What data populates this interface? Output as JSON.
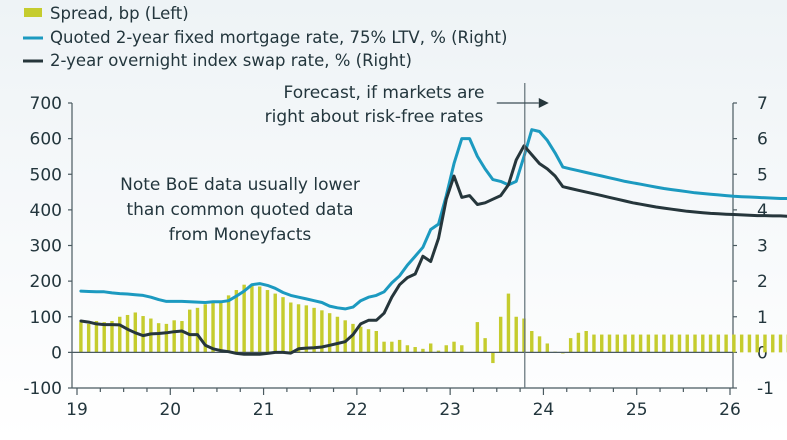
{
  "chart_data": {
    "type": "bar+line",
    "title": "",
    "legend": {
      "placement": "top-left",
      "entries": [
        {
          "label": "Spread, bp (Left)",
          "kind": "bar",
          "color": "#c5cc2e"
        },
        {
          "label": "Quoted 2-year fixed mortgage rate, 75% LTV, % (Right)",
          "kind": "line",
          "color": "#1c9ac0"
        },
        {
          "label": "2-year overnight index swap rate, % (Right)",
          "kind": "line",
          "color": "#26363b"
        }
      ]
    },
    "x_axis": {
      "start": 2019,
      "end": 2026,
      "tick_labels": [
        "19",
        "20",
        "21",
        "22",
        "23",
        "24",
        "25",
        "26"
      ],
      "minor_ticks_per_year": 4
    },
    "left_axis": {
      "label": "bp",
      "ylim": [
        -100,
        700
      ],
      "tick_labels": [
        "700",
        "600",
        "500",
        "400",
        "300",
        "200",
        "100",
        "0",
        "-100"
      ]
    },
    "right_axis": {
      "label": "%",
      "ylim": [
        -1,
        7
      ],
      "tick_labels": [
        "7",
        "6",
        "5",
        "4",
        "3",
        "2",
        "1",
        "0",
        "-1"
      ]
    },
    "forecast_start": 2023.8,
    "annotations": {
      "forecast": [
        "Forecast, if markets are",
        "right about risk-free rates"
      ],
      "note": [
        "Note BoE data usually lower",
        "than common quoted data",
        "from Moneyfacts"
      ]
    },
    "x_monthly_start": 2019.0,
    "series": [
      {
        "name": "Spread, bp (Left)",
        "axis": "left",
        "type": "bar",
        "values": [
          85,
          80,
          88,
          85,
          88,
          100,
          105,
          112,
          102,
          95,
          82,
          80,
          90,
          88,
          120,
          125,
          135,
          140,
          145,
          160,
          175,
          190,
          190,
          185,
          175,
          165,
          155,
          140,
          135,
          132,
          125,
          118,
          110,
          100,
          90,
          80,
          72,
          65,
          60,
          30,
          30,
          35,
          20,
          15,
          10,
          25,
          5,
          20,
          30,
          20,
          0,
          85,
          40,
          -30,
          100,
          165,
          100,
          95,
          60,
          45,
          25,
          2,
          -3,
          40,
          55,
          60,
          50,
          50,
          50,
          50,
          50,
          50,
          50,
          50,
          50,
          50,
          50,
          50,
          50,
          50,
          50,
          50,
          50,
          50,
          50,
          50,
          50,
          50,
          50,
          50,
          50,
          50,
          50,
          50,
          50,
          50
        ]
      },
      {
        "name": "Quoted 2-year fixed mortgage rate, 75% LTV, % (Right)",
        "axis": "right",
        "type": "line",
        "values": [
          1.72,
          1.71,
          1.7,
          1.7,
          1.67,
          1.65,
          1.64,
          1.62,
          1.6,
          1.55,
          1.48,
          1.43,
          1.43,
          1.43,
          1.42,
          1.41,
          1.4,
          1.42,
          1.42,
          1.45,
          1.58,
          1.72,
          1.9,
          1.93,
          1.88,
          1.8,
          1.68,
          1.6,
          1.55,
          1.5,
          1.45,
          1.4,
          1.3,
          1.25,
          1.22,
          1.27,
          1.45,
          1.55,
          1.6,
          1.7,
          1.95,
          2.15,
          2.45,
          2.7,
          2.95,
          3.45,
          3.6,
          4.4,
          5.3,
          6.0,
          6.0,
          5.5,
          5.15,
          4.85,
          4.8,
          4.7,
          4.8,
          5.5,
          6.25,
          6.2,
          5.95,
          5.6,
          5.2,
          5.15,
          5.1,
          5.05,
          5.0,
          4.95,
          4.9,
          4.85,
          4.8,
          4.76,
          4.72,
          4.68,
          4.64,
          4.6,
          4.57,
          4.54,
          4.51,
          4.48,
          4.46,
          4.44,
          4.42,
          4.4,
          4.38,
          4.37,
          4.36,
          4.35,
          4.34,
          4.33,
          4.32,
          4.32,
          4.31,
          4.31,
          4.3,
          4.3
        ]
      },
      {
        "name": "2-year overnight index swap rate, % (Right)",
        "axis": "right",
        "type": "line",
        "values": [
          0.88,
          0.85,
          0.8,
          0.78,
          0.78,
          0.77,
          0.65,
          0.55,
          0.47,
          0.52,
          0.53,
          0.55,
          0.58,
          0.6,
          0.5,
          0.5,
          0.2,
          0.1,
          0.05,
          0.02,
          -0.03,
          -0.05,
          -0.05,
          -0.05,
          -0.03,
          0.0,
          0.0,
          -0.02,
          0.1,
          0.12,
          0.13,
          0.15,
          0.2,
          0.25,
          0.3,
          0.5,
          0.8,
          0.9,
          0.9,
          1.1,
          1.55,
          1.9,
          2.1,
          2.2,
          2.7,
          2.55,
          3.2,
          4.3,
          4.95,
          4.35,
          4.4,
          4.15,
          4.2,
          4.3,
          4.4,
          4.7,
          5.4,
          5.8,
          5.55,
          5.3,
          5.15,
          4.95,
          4.65,
          4.6,
          4.55,
          4.5,
          4.45,
          4.4,
          4.35,
          4.3,
          4.25,
          4.2,
          4.16,
          4.12,
          4.08,
          4.05,
          4.02,
          3.99,
          3.96,
          3.94,
          3.92,
          3.9,
          3.89,
          3.88,
          3.87,
          3.86,
          3.85,
          3.84,
          3.84,
          3.83,
          3.83,
          3.82,
          3.82,
          3.82,
          3.82,
          3.82
        ]
      }
    ]
  }
}
